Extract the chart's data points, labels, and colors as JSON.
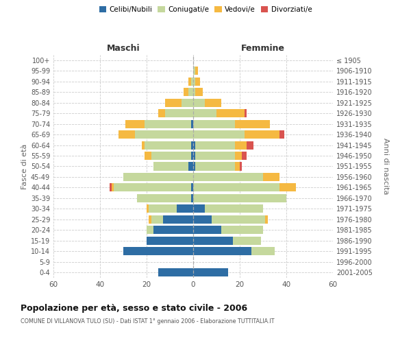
{
  "age_groups": [
    "0-4",
    "5-9",
    "10-14",
    "15-19",
    "20-24",
    "25-29",
    "30-34",
    "35-39",
    "40-44",
    "45-49",
    "50-54",
    "55-59",
    "60-64",
    "65-69",
    "70-74",
    "75-79",
    "80-84",
    "85-89",
    "90-94",
    "95-99",
    "100+"
  ],
  "birth_years": [
    "2001-2005",
    "1996-2000",
    "1991-1995",
    "1986-1990",
    "1981-1985",
    "1976-1980",
    "1971-1975",
    "1966-1970",
    "1961-1965",
    "1956-1960",
    "1951-1955",
    "1946-1950",
    "1941-1945",
    "1936-1940",
    "1931-1935",
    "1926-1930",
    "1921-1925",
    "1916-1920",
    "1911-1915",
    "1906-1910",
    "≤ 1905"
  ],
  "male_celibi": [
    15,
    0,
    30,
    20,
    17,
    13,
    7,
    1,
    1,
    0,
    2,
    1,
    1,
    0,
    1,
    0,
    0,
    0,
    0,
    0,
    0
  ],
  "male_coniugati": [
    0,
    0,
    0,
    0,
    3,
    5,
    12,
    23,
    33,
    30,
    15,
    17,
    20,
    25,
    20,
    12,
    5,
    2,
    1,
    0,
    0
  ],
  "male_vedovi": [
    0,
    0,
    0,
    0,
    0,
    1,
    1,
    0,
    1,
    0,
    0,
    3,
    1,
    7,
    8,
    3,
    7,
    2,
    1,
    0,
    0
  ],
  "male_divorziati": [
    0,
    0,
    0,
    0,
    0,
    0,
    0,
    0,
    1,
    0,
    0,
    0,
    0,
    0,
    0,
    0,
    0,
    0,
    0,
    0,
    0
  ],
  "female_celibi": [
    15,
    0,
    25,
    17,
    12,
    8,
    5,
    0,
    0,
    0,
    1,
    1,
    1,
    0,
    0,
    0,
    0,
    0,
    0,
    0,
    0
  ],
  "female_coniugati": [
    0,
    0,
    10,
    12,
    18,
    23,
    25,
    40,
    37,
    30,
    17,
    17,
    17,
    22,
    18,
    10,
    5,
    1,
    1,
    1,
    0
  ],
  "female_vedovi": [
    0,
    0,
    0,
    0,
    0,
    1,
    0,
    0,
    7,
    7,
    2,
    3,
    5,
    15,
    15,
    12,
    7,
    3,
    2,
    1,
    0
  ],
  "female_divorziati": [
    0,
    0,
    0,
    0,
    0,
    0,
    0,
    0,
    0,
    0,
    1,
    2,
    3,
    2,
    0,
    1,
    0,
    0,
    0,
    0,
    0
  ],
  "color_celibi": "#2e6da4",
  "color_coniugati": "#c5d89d",
  "color_vedovi": "#f5b942",
  "color_divorziati": "#d9534f",
  "title": "Popolazione per età, sesso e stato civile - 2006",
  "subtitle": "COMUNE DI VILLANOVA TULO (SU) - Dati ISTAT 1° gennaio 2006 - Elaborazione TUTTITALIA.IT",
  "xlabel_left": "Maschi",
  "xlabel_right": "Femmine",
  "ylabel_left": "Fasce di età",
  "ylabel_right": "Anni di nascita",
  "xlim": 60,
  "bg_color": "#ffffff",
  "grid_color": "#cccccc"
}
